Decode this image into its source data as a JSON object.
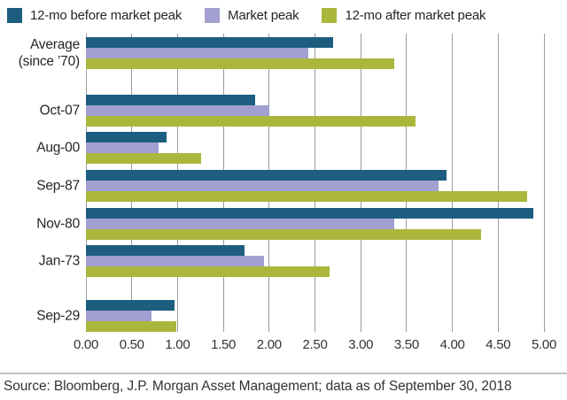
{
  "source": "Source: Bloomberg, J.P. Morgan Asset Management; data as of September 30, 2018",
  "colors": {
    "before_peak": "#1d5e80",
    "market_peak": "#a29fd1",
    "after_peak": "#abb63c",
    "gridline": "#9b9b9b"
  },
  "chart_data": {
    "type": "bar",
    "orientation": "horizontal",
    "categories": [
      "Average\n(since ’70)",
      "Oct-07",
      "Aug-00",
      "Sep-87",
      "Nov-80",
      "Jan-73",
      "Sep-29"
    ],
    "series": [
      {
        "name": "12-mo before market peak",
        "color": "#1d5e80",
        "values": [
          2.7,
          1.85,
          0.88,
          3.94,
          4.88,
          1.73,
          0.97
        ]
      },
      {
        "name": "Market peak",
        "color": "#a29fd1",
        "values": [
          2.43,
          2.0,
          0.79,
          3.85,
          3.37,
          1.94,
          0.72
        ]
      },
      {
        "name": "12-mo after market peak",
        "color": "#abb63c",
        "values": [
          3.37,
          3.6,
          1.26,
          4.82,
          4.31,
          2.66,
          0.99
        ]
      }
    ],
    "xlim": [
      0,
      5
    ],
    "x_ticks": [
      "0.00",
      "0.50",
      "1.00",
      "1.50",
      "2.00",
      "2.50",
      "3.00",
      "3.50",
      "4.00",
      "4.50",
      "5.00"
    ],
    "grid": "vertical-only",
    "legend_position": "top"
  }
}
